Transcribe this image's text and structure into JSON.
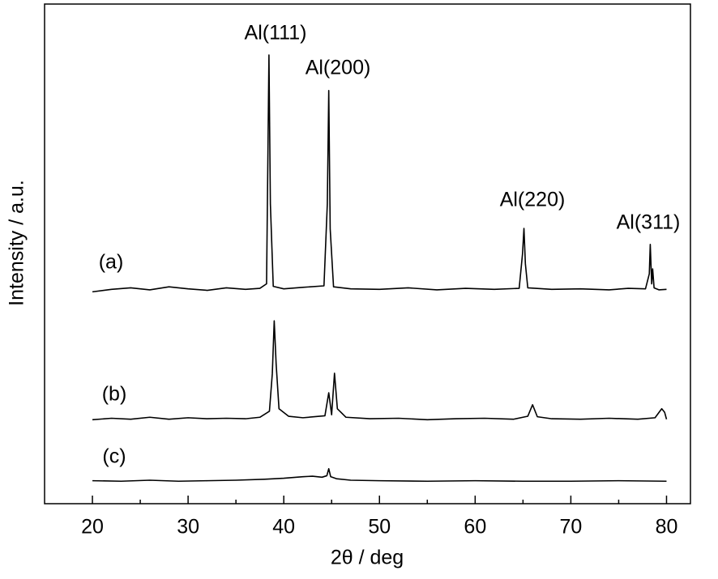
{
  "chart_data": {
    "type": "line",
    "xlabel": "2θ / deg",
    "ylabel": "Intensity / a.u.",
    "xlim": [
      15,
      82.5
    ],
    "ylim": [
      0,
      100
    ],
    "xticks": [
      20,
      30,
      40,
      50,
      60,
      70,
      80
    ],
    "xminorticks": [
      25,
      35,
      45,
      55,
      65,
      75
    ],
    "annotations": [
      "Al(111)",
      "Al(200)",
      "Al(220)",
      "Al(311)"
    ],
    "series": [
      {
        "name": "(a)",
        "color": "#000000",
        "x": [
          20,
          22,
          24,
          26,
          28,
          30,
          32,
          34,
          36,
          37.5,
          38.2,
          38.45,
          38.6,
          38.9,
          40,
          42,
          44.2,
          44.55,
          44.7,
          44.85,
          45.2,
          47,
          50,
          53,
          56,
          59,
          62,
          64.6,
          64.95,
          65.1,
          65.25,
          65.5,
          68,
          71,
          74,
          76,
          77.8,
          78.2,
          78.3,
          78.45,
          78.55,
          78.7,
          79.2,
          80
        ],
        "values": [
          42.4,
          42.9,
          43.2,
          42.8,
          43.4,
          43.0,
          42.7,
          43.2,
          42.9,
          43.1,
          44,
          89.8,
          60,
          43.5,
          43.0,
          43.3,
          43.6,
          60,
          82.7,
          55,
          43.4,
          43.0,
          42.9,
          43.2,
          42.8,
          43.1,
          42.9,
          43.1,
          50,
          55.1,
          48,
          43.2,
          42.9,
          43.0,
          42.8,
          43.1,
          43.0,
          46,
          51.9,
          44,
          47,
          43.2,
          42.8,
          42.9
        ]
      },
      {
        "name": "(b)",
        "color": "#000000",
        "x": [
          20,
          22,
          24,
          26,
          28,
          30,
          32,
          34,
          36,
          37.5,
          38.5,
          38.8,
          39.0,
          39.2,
          39.5,
          40.5,
          42,
          44.3,
          44.7,
          45.0,
          45.3,
          45.6,
          46.5,
          49,
          52,
          55,
          58,
          61,
          64,
          65.5,
          66.0,
          66.5,
          68,
          71,
          74,
          77,
          78.8,
          79.3,
          79.5,
          79.8,
          80
        ],
        "values": [
          16.8,
          17.1,
          16.9,
          17.3,
          16.9,
          17.2,
          17.0,
          17.1,
          17.0,
          17.3,
          18.5,
          26,
          36.6,
          28,
          19,
          17.5,
          17.2,
          17.6,
          22.2,
          17.8,
          26.1,
          19,
          17.3,
          17.0,
          17.1,
          16.8,
          17.0,
          17.1,
          16.9,
          17.5,
          19.8,
          17.4,
          17.0,
          16.9,
          17.1,
          16.9,
          17.2,
          18.5,
          19.0,
          18.3,
          16.9
        ]
      },
      {
        "name": "(c)",
        "color": "#000000",
        "x": [
          20,
          23,
          26,
          29,
          32,
          35,
          38,
          40,
          42,
          43,
          44,
          44.5,
          44.7,
          44.9,
          45.5,
          47,
          50,
          55,
          60,
          65,
          70,
          75,
          80
        ],
        "values": [
          4.6,
          4.5,
          4.7,
          4.5,
          4.6,
          4.7,
          4.9,
          5.1,
          5.4,
          5.5,
          5.3,
          5.6,
          7.0,
          5.4,
          5.0,
          4.7,
          4.6,
          4.5,
          4.6,
          4.5,
          4.5,
          4.6,
          4.5
        ]
      }
    ]
  }
}
